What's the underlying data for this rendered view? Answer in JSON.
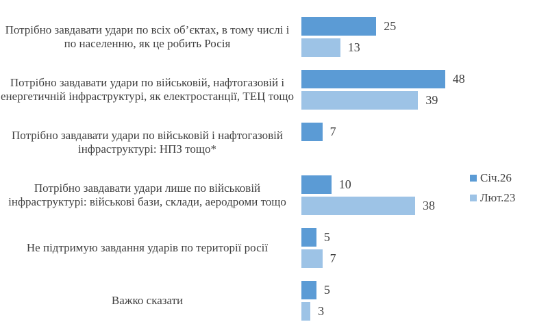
{
  "chart_data": {
    "type": "bar",
    "orientation": "horizontal",
    "title": "",
    "xlabel": "",
    "ylabel": "",
    "categories": [
      "Потрібно завдавати удари по всіх об’єктах, в тому числі і по населенню, як це робить Росія",
      "Потрібно завдавати удари по військовій, нафтогазовій і енергетичній інфраструктурі, як електростанції, ТЕЦ тощо",
      "Потрібно завдавати удари по військовій і нафтогазовій інфраструктурі: НПЗ тощо*",
      "Потрібно завдавати удари лише по військовій інфраструктурі: військові бази, склади, аеродроми тощо",
      "Не підтримую завдання ударів по території росії",
      "Важко сказати"
    ],
    "series": [
      {
        "name": "Січ.26",
        "color": "#5B9BD5",
        "values": [
          25,
          48,
          7,
          10,
          5,
          5
        ]
      },
      {
        "name": "Лют.23",
        "color": "#9DC3E6",
        "values": [
          13,
          39,
          null,
          38,
          7,
          3
        ]
      }
    ],
    "xlim": [
      0,
      80
    ],
    "grid": false,
    "axis_lines": false,
    "legend_position": "right",
    "value_labels": true,
    "text_color": "#404040"
  }
}
